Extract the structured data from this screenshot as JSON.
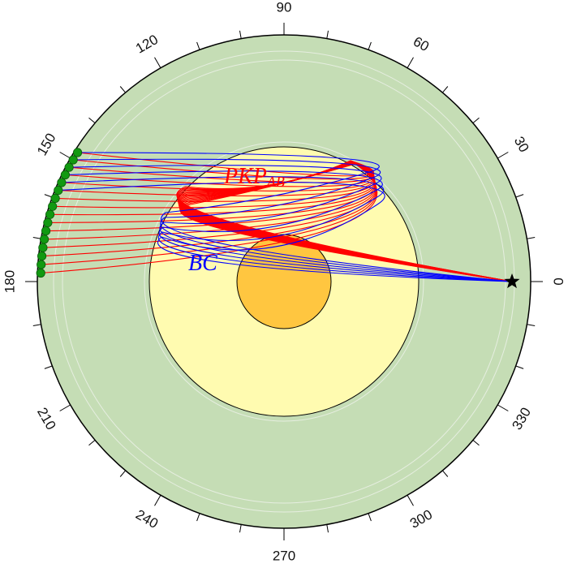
{
  "figure": {
    "angle_labels": [
      "0",
      "30",
      "60",
      "90",
      "120",
      "150",
      "180",
      "210",
      "240",
      "270",
      "300",
      "330"
    ],
    "layers": {
      "mantle_color": "#c5ddb5",
      "outer_core_color": "#fffbb0",
      "inner_core_color": "#ffc640",
      "outline_color": "#000000",
      "internal_discontinuity_color": "#e6eee0"
    },
    "phases": {
      "ab": {
        "name": "PKP",
        "subscript": "AB",
        "color": "#ff0000"
      },
      "bc": {
        "name": "BC",
        "color": "#0000ff"
      }
    },
    "source": {
      "marker": "star-icon",
      "color": "#000000",
      "azimuth_deg": 0
    },
    "receivers": {
      "marker": "circle",
      "color": "#119911",
      "azimuth_deg": [
        148,
        150,
        152,
        154,
        156,
        158,
        160,
        162,
        164,
        166,
        168,
        170,
        172,
        174,
        176,
        178
      ]
    }
  }
}
